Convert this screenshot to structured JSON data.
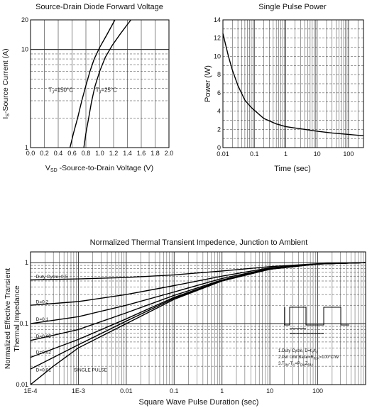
{
  "colors": {
    "line": "#000000",
    "grid": "#333333",
    "text": "#111111",
    "background": "#ffffff"
  },
  "chart_data": [
    {
      "type": "line",
      "title": "Source-Drain Diode Forward Voltage",
      "xlabel": "VSD -Source-to-Drain Voltage (V)",
      "xlabel_parts": [
        "V",
        "SD",
        " -Source-to-Drain Voltage (V)"
      ],
      "ylabel": "IS-Source Current (A)",
      "ylabel_parts": [
        "I",
        "S",
        "-Source Current (A)"
      ],
      "xscale": "linear",
      "yscale": "log",
      "xlim": [
        0.0,
        2.0
      ],
      "ylim": [
        1,
        20
      ],
      "x_ticks": [
        0.0,
        0.2,
        0.4,
        0.6,
        0.8,
        1.0,
        1.2,
        1.4,
        1.6,
        1.8,
        2.0
      ],
      "x_tick_labels": [
        "0.0",
        "0.2",
        "0.4",
        "0.6",
        "0.8",
        "1.0",
        "1.2",
        "1.4",
        "1.6",
        "1.8",
        "2.0"
      ],
      "y_ticks": [
        1,
        10,
        20
      ],
      "y_tick_labels": [
        "1",
        "10",
        "20"
      ],
      "grid": true,
      "series": [
        {
          "name": "TJ=150°C",
          "x": [
            0.57,
            0.62,
            0.68,
            0.74,
            0.8,
            0.86,
            0.92,
            1.0,
            1.1,
            1.22
          ],
          "y": [
            1.0,
            1.4,
            2.0,
            3.0,
            4.3,
            6.0,
            8.0,
            10.5,
            14.0,
            20.0
          ]
        },
        {
          "name": "TJ=25°C",
          "x": [
            0.77,
            0.8,
            0.84,
            0.88,
            0.93,
            1.0,
            1.08,
            1.18,
            1.3,
            1.45
          ],
          "y": [
            1.0,
            1.4,
            2.0,
            2.9,
            4.2,
            6.0,
            8.3,
            11.0,
            14.5,
            20.0
          ]
        }
      ],
      "annotations": [
        {
          "text": "TJ=150°C",
          "parts": [
            "T",
            "J",
            "=150°C"
          ],
          "x": 0.26,
          "y": 3.7
        },
        {
          "text": "TJ=25°C",
          "parts": [
            "T",
            "J",
            "=25°C"
          ],
          "x": 0.94,
          "y": 3.7
        }
      ]
    },
    {
      "type": "line",
      "title": "Single Pulse Power",
      "xlabel": "Time (sec)",
      "ylabel": "Power (W)",
      "xscale": "log",
      "yscale": "linear",
      "xlim": [
        0.01,
        300
      ],
      "ylim": [
        0,
        14
      ],
      "x_ticks": [
        0.01,
        0.1,
        1,
        10,
        100
      ],
      "x_tick_labels": [
        "0.01",
        "0.1",
        "1",
        "10",
        "100"
      ],
      "y_ticks": [
        0,
        2,
        4,
        6,
        8,
        10,
        12,
        14
      ],
      "y_tick_labels": [
        "0",
        "2",
        "4",
        "6",
        "8",
        "10",
        "12",
        "14"
      ],
      "grid": true,
      "series": [
        {
          "name": "",
          "x": [
            0.01,
            0.015,
            0.02,
            0.03,
            0.05,
            0.08,
            0.1,
            0.2,
            0.5,
            1,
            2,
            5,
            10,
            30,
            100,
            300
          ],
          "y": [
            12.5,
            10.0,
            8.5,
            6.8,
            5.2,
            4.4,
            4.1,
            3.2,
            2.6,
            2.3,
            2.15,
            1.95,
            1.8,
            1.6,
            1.45,
            1.3
          ]
        }
      ]
    },
    {
      "type": "line",
      "title": "Normalized Thermal Transient Impedence, Junction to Ambient",
      "xlabel": "Square Wave Pulse Duration (sec)",
      "ylabel": "Normalized Effective Transient Thermal Impedance",
      "ylabel_lines": [
        "Normalized Effective Transient",
        "Thermal Impedance"
      ],
      "xscale": "log",
      "yscale": "log",
      "xlim": [
        0.0001,
        1000
      ],
      "ylim": [
        0.01,
        1.5
      ],
      "x_ticks": [
        0.0001,
        0.001,
        0.01,
        0.1,
        1,
        10,
        100
      ],
      "x_tick_labels": [
        "1E-4",
        "1E-3",
        "0.01",
        "0.1",
        "1",
        "10",
        "100"
      ],
      "y_ticks": [
        0.01,
        0.1,
        1
      ],
      "y_tick_labels": [
        "0.01",
        "0.1",
        "1"
      ],
      "grid": true,
      "series": [
        {
          "name": "Duty Cycle=0.5",
          "x": [
            0.0001,
            0.001,
            0.01,
            0.1,
            1,
            10,
            100,
            1000
          ],
          "y": [
            0.52,
            0.54,
            0.57,
            0.63,
            0.73,
            0.86,
            0.96,
            1.0
          ]
        },
        {
          "name": "D=0.2",
          "x": [
            0.0001,
            0.001,
            0.01,
            0.1,
            1,
            10,
            100,
            1000
          ],
          "y": [
            0.2,
            0.23,
            0.3,
            0.42,
            0.6,
            0.82,
            0.95,
            1.0
          ]
        },
        {
          "name": "D=0.1",
          "x": [
            0.0001,
            0.001,
            0.01,
            0.1,
            1,
            10,
            100,
            1000
          ],
          "y": [
            0.1,
            0.13,
            0.2,
            0.33,
            0.55,
            0.8,
            0.95,
            1.0
          ]
        },
        {
          "name": "D=0.05",
          "x": [
            0.0001,
            0.001,
            0.01,
            0.1,
            1,
            10,
            100,
            1000
          ],
          "y": [
            0.053,
            0.08,
            0.15,
            0.29,
            0.52,
            0.79,
            0.95,
            1.0
          ]
        },
        {
          "name": "D=0.02",
          "x": [
            0.0001,
            0.001,
            0.01,
            0.1,
            1,
            10,
            100,
            1000
          ],
          "y": [
            0.028,
            0.055,
            0.12,
            0.27,
            0.51,
            0.78,
            0.95,
            1.0
          ]
        },
        {
          "name": "D=0.01",
          "x": [
            0.0001,
            0.001,
            0.01,
            0.1,
            1,
            10,
            100,
            1000
          ],
          "y": [
            0.018,
            0.045,
            0.11,
            0.26,
            0.5,
            0.78,
            0.95,
            1.0
          ]
        },
        {
          "name": "SINGLE PULSE",
          "x": [
            0.0001,
            0.0003,
            0.001,
            0.01,
            0.1,
            1,
            10,
            100,
            1000
          ],
          "y": [
            0.01,
            0.02,
            0.04,
            0.1,
            0.25,
            0.5,
            0.78,
            0.95,
            1.0
          ]
        }
      ],
      "annotations": [
        {
          "text": "Duty Cycle=0.5",
          "x": 0.00013,
          "y": 0.56
        },
        {
          "text": "D=0.2",
          "x": 0.00013,
          "y": 0.215
        },
        {
          "text": "D=0.1",
          "x": 0.00013,
          "y": 0.112
        },
        {
          "text": "D=0.05",
          "x": 0.00013,
          "y": 0.059
        },
        {
          "text": "D=0.02",
          "x": 0.00013,
          "y": 0.032
        },
        {
          "text": "D=0.01",
          "x": 0.00013,
          "y": 0.0165
        },
        {
          "text": "SINGLE PULSE",
          "x": 0.0008,
          "y": 0.0165
        }
      ],
      "notes": [
        {
          "text": "1.Duty Cycle, D=t1/t2",
          "parts": [
            "1.Duty Cycle, D=t",
            "1",
            "/t",
            "2",
            ""
          ]
        },
        {
          "text": "2.Per Unit Base=RθJA=100°C/W",
          "parts": [
            "2.Per Unit Base=R",
            "θJA",
            "=100°C/W",
            "",
            ""
          ]
        },
        {
          "text": "3.TJM-TA=PDMZθJA",
          "parts": [
            "3.T",
            "JM",
            "-T",
            "A",
            "=P",
            "DM",
            "Z",
            "θJA",
            ""
          ]
        }
      ]
    }
  ]
}
